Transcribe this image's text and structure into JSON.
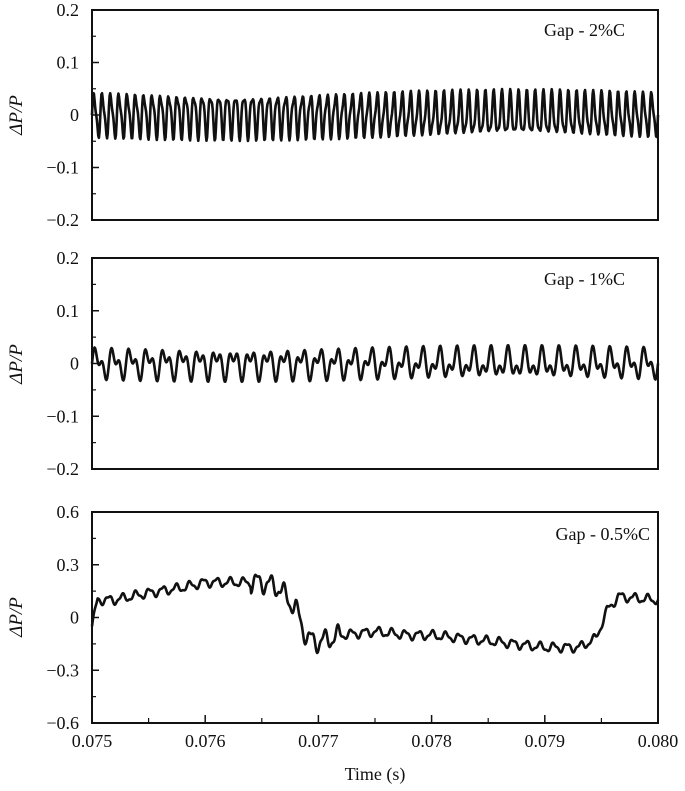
{
  "chart_data": [
    {
      "type": "line",
      "annotation": "Gap - 2%C",
      "ylabel": "ΔP/P",
      "xlim": [
        0.075,
        0.08
      ],
      "ylim": [
        -0.2,
        0.2
      ],
      "yticks": [
        {
          "value": 0.2,
          "label": "0.2"
        },
        {
          "value": 0.1,
          "label": "0.1"
        },
        {
          "value": 0,
          "label": "0"
        },
        {
          "value": -0.1,
          "label": "−0.1"
        },
        {
          "value": -0.2,
          "label": "−0.2"
        }
      ],
      "series": [
        {
          "amplitude": 0.045,
          "x": [
            0.075,
            0.0755,
            0.076,
            0.0765,
            0.077,
            0.0775,
            0.078,
            0.0785,
            0.079,
            0.0795,
            0.08
          ],
          "y": [
            0,
            0,
            0,
            0,
            0,
            0,
            0,
            0,
            0,
            0,
            0
          ]
        }
      ]
    },
    {
      "type": "line",
      "annotation": "Gap - 1%C",
      "ylabel": "ΔP/P",
      "xlim": [
        0.075,
        0.08
      ],
      "ylim": [
        -0.2,
        0.2
      ],
      "yticks": [
        {
          "value": 0.2,
          "label": "0.2"
        },
        {
          "value": 0.1,
          "label": "0.1"
        },
        {
          "value": 0,
          "label": "0"
        },
        {
          "value": -0.1,
          "label": "−0.1"
        },
        {
          "value": -0.2,
          "label": "−0.2"
        }
      ],
      "series": [
        {
          "amplitude": 0.028,
          "x": [
            0.075,
            0.0755,
            0.076,
            0.0765,
            0.077,
            0.0775,
            0.078,
            0.0785,
            0.079,
            0.0795,
            0.08
          ],
          "y": [
            0,
            0,
            0,
            0,
            0,
            0,
            0,
            0,
            0,
            0,
            0
          ]
        }
      ]
    },
    {
      "type": "line",
      "annotation": "Gap - 0.5%C",
      "ylabel": "ΔP/P",
      "xlabel": "Time (s)",
      "xlim": [
        0.075,
        0.08
      ],
      "ylim": [
        -0.6,
        0.6
      ],
      "yticks": [
        {
          "value": 0.6,
          "label": "0.6"
        },
        {
          "value": 0.3,
          "label": "0.3"
        },
        {
          "value": 0,
          "label": "0"
        },
        {
          "value": -0.3,
          "label": "−0.3"
        },
        {
          "value": -0.6,
          "label": "−0.6"
        }
      ],
      "xticks": [
        {
          "value": 0.075,
          "label": "0.075"
        },
        {
          "value": 0.076,
          "label": "0.076"
        },
        {
          "value": 0.077,
          "label": "0.077"
        },
        {
          "value": 0.078,
          "label": "0.078"
        },
        {
          "value": 0.079,
          "label": "0.079"
        },
        {
          "value": 0.08,
          "label": "0.080"
        }
      ],
      "series": [
        {
          "amplitude": 0.025,
          "x": [
            0.075,
            0.07505,
            0.0752,
            0.0755,
            0.0758,
            0.076,
            0.0762,
            0.0765,
            0.07665,
            0.0768,
            0.0769,
            0.077,
            0.0772,
            0.0775,
            0.0778,
            0.078,
            0.0783,
            0.0786,
            0.079,
            0.0793,
            0.07945,
            0.07955,
            0.07965,
            0.0798,
            0.08
          ],
          "y": [
            -0.05,
            0.1,
            0.1,
            0.14,
            0.17,
            0.2,
            0.2,
            0.2,
            0.17,
            0.05,
            -0.12,
            -0.14,
            -0.1,
            -0.08,
            -0.1,
            -0.1,
            -0.12,
            -0.14,
            -0.17,
            -0.17,
            -0.12,
            0.04,
            0.12,
            0.11,
            0.1
          ]
        }
      ]
    }
  ]
}
